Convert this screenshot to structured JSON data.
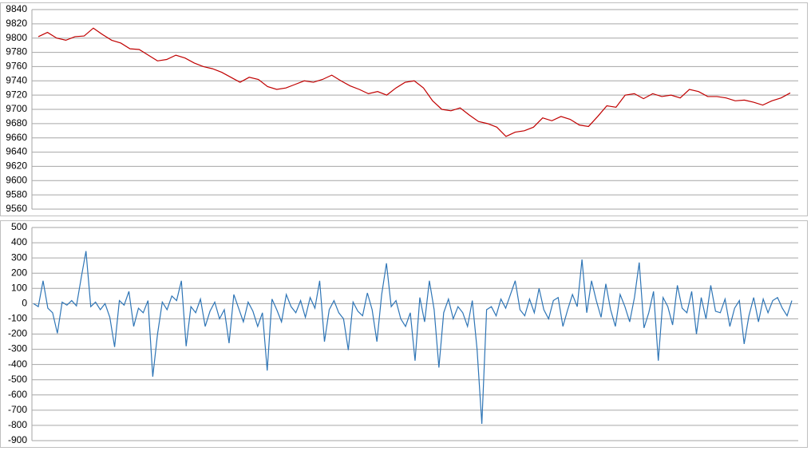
{
  "chart_data": [
    {
      "type": "line",
      "grid": true,
      "ylim": [
        9560,
        9840
      ],
      "yticks": [
        9560,
        9580,
        9600,
        9620,
        9640,
        9660,
        9680,
        9700,
        9720,
        9740,
        9760,
        9780,
        9800,
        9820,
        9840
      ],
      "series": [
        {
          "color": "#c00000",
          "values": [
            9802,
            9808,
            9800,
            9797,
            9802,
            9803,
            9814,
            9805,
            9797,
            9793,
            9785,
            9784,
            9776,
            9768,
            9770,
            9776,
            9772,
            9765,
            9760,
            9757,
            9752,
            9745,
            9738,
            9745,
            9742,
            9732,
            9728,
            9730,
            9735,
            9740,
            9738,
            9742,
            9748,
            9740,
            9733,
            9728,
            9722,
            9725,
            9720,
            9730,
            9738,
            9740,
            9730,
            9712,
            9700,
            9698,
            9702,
            9692,
            9683,
            9680,
            9675,
            9662,
            9668,
            9670,
            9675,
            9688,
            9684,
            9690,
            9686,
            9678,
            9676,
            9690,
            9705,
            9703,
            9720,
            9722,
            9715,
            9722,
            9718,
            9720,
            9716,
            9728,
            9725,
            9718,
            9718,
            9716,
            9712,
            9713,
            9710,
            9706,
            9712,
            9716,
            9723
          ]
        }
      ]
    },
    {
      "type": "line",
      "grid": true,
      "ylim": [
        -900,
        500
      ],
      "yticks": [
        -900,
        -800,
        -700,
        -600,
        -500,
        -400,
        -300,
        -200,
        -100,
        0,
        100,
        200,
        300,
        400,
        500
      ],
      "series": [
        {
          "color": "#2e75b6",
          "values": [
            0,
            -20,
            150,
            -30,
            -60,
            -195,
            10,
            -10,
            20,
            -15,
            170,
            345,
            -20,
            10,
            -40,
            0,
            -90,
            -285,
            20,
            -10,
            80,
            -150,
            -30,
            -60,
            20,
            -480,
            -200,
            10,
            -40,
            50,
            20,
            150,
            -280,
            -20,
            -60,
            30,
            -150,
            -50,
            10,
            -100,
            -40,
            -260,
            60,
            -30,
            -120,
            10,
            -50,
            -150,
            -60,
            -440,
            30,
            -40,
            -120,
            60,
            -20,
            -60,
            20,
            -90,
            40,
            -30,
            150,
            -250,
            -40,
            20,
            -60,
            -100,
            -305,
            10,
            -50,
            -80,
            70,
            -40,
            -250,
            60,
            265,
            -20,
            20,
            -100,
            -150,
            -60,
            -375,
            40,
            -120,
            150,
            -40,
            -420,
            -60,
            30,
            -100,
            -20,
            -60,
            -150,
            20,
            -300,
            -790,
            -40,
            -20,
            -80,
            30,
            -30,
            60,
            150,
            -40,
            -80,
            30,
            -60,
            100,
            -40,
            -100,
            20,
            40,
            -150,
            -40,
            60,
            -20,
            290,
            -60,
            150,
            20,
            -90,
            130,
            -40,
            -150,
            60,
            -20,
            -120,
            40,
            270,
            -160,
            -60,
            80,
            -375,
            40,
            -20,
            -140,
            120,
            -30,
            -60,
            80,
            -200,
            40,
            -100,
            120,
            -50,
            -60,
            30,
            -150,
            -30,
            20,
            -265,
            -80,
            40,
            -120,
            30,
            -60,
            20,
            40,
            -30,
            -80,
            20
          ]
        }
      ]
    }
  ]
}
